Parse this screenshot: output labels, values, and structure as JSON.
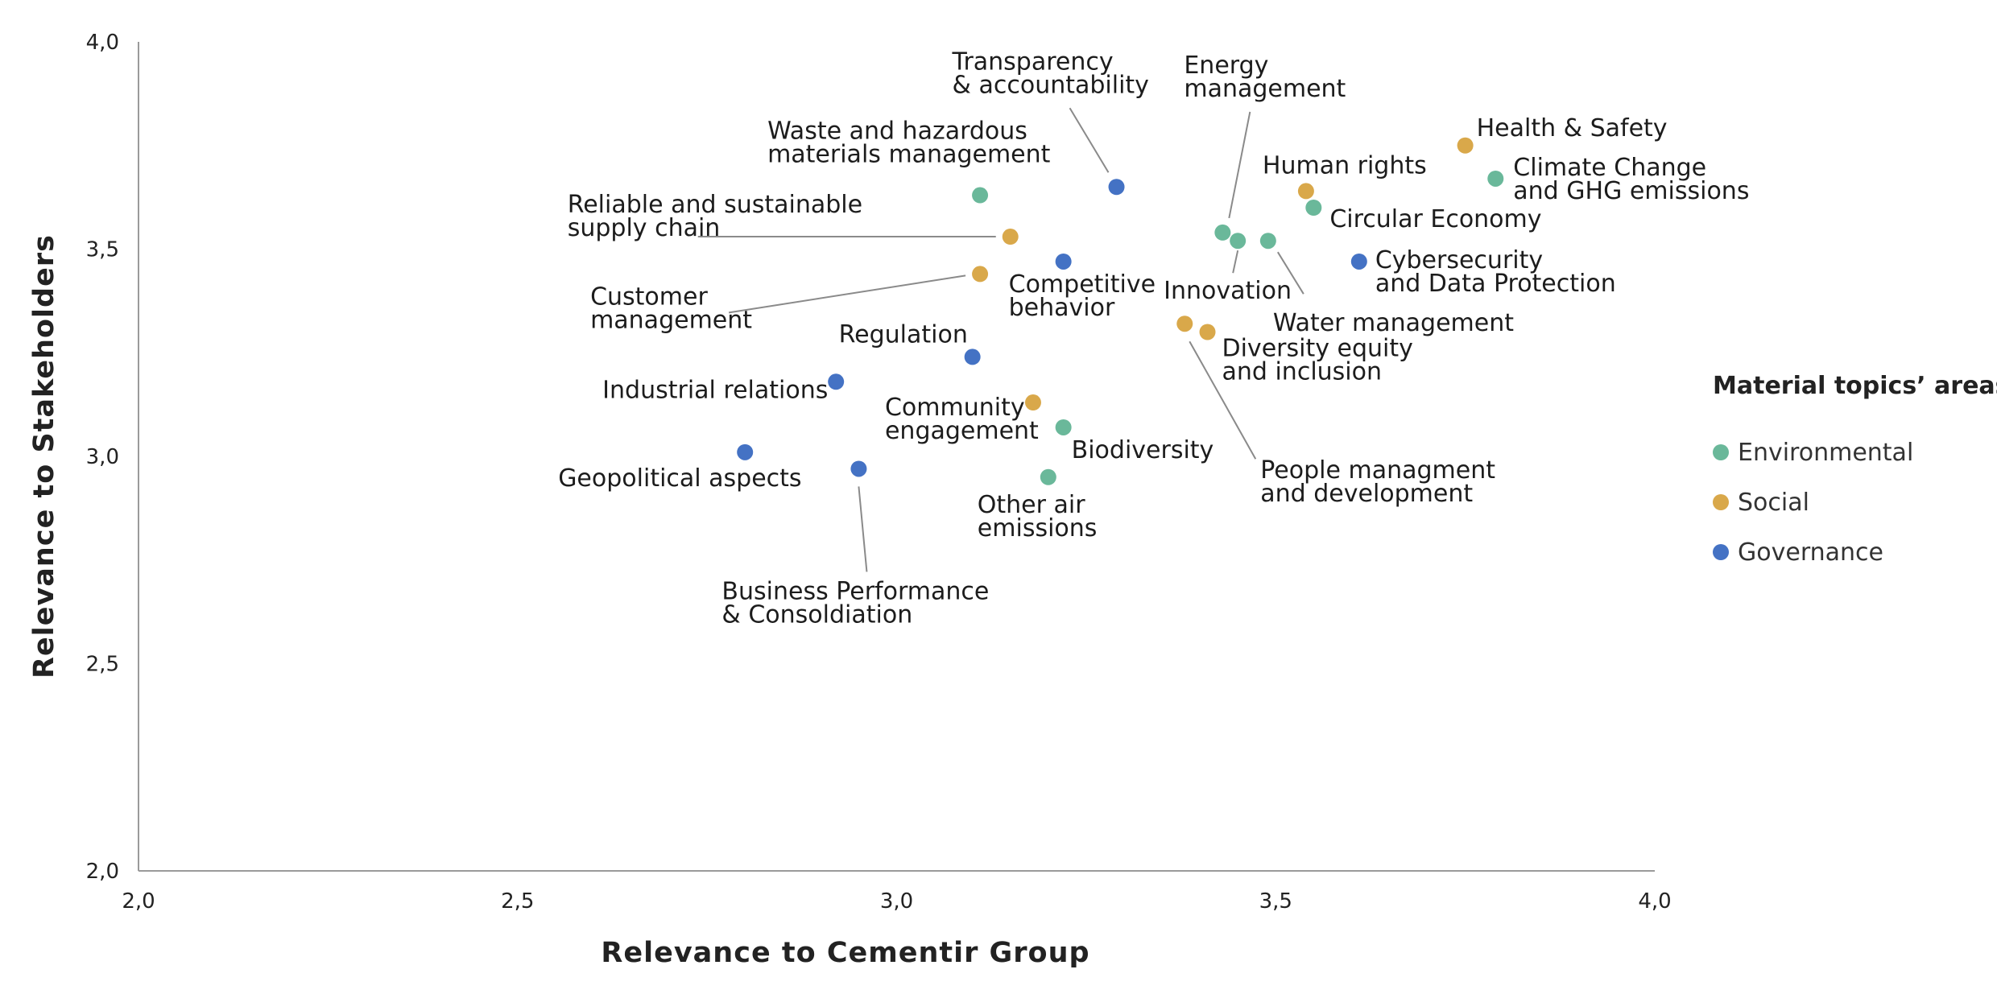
{
  "chart_data": {
    "type": "scatter",
    "xlabel": "Relevance to Cementir Group",
    "ylabel": "Relevance to Stakeholders",
    "xlim": [
      2.0,
      4.0
    ],
    "ylim": [
      2.0,
      4.0
    ],
    "x_ticks": [
      "2,0",
      "2,5",
      "3,0",
      "3,5",
      "4,0"
    ],
    "y_ticks": [
      "2,0",
      "2,5",
      "3,0",
      "3,5",
      "4,0"
    ],
    "grid": false,
    "legend": {
      "title": "Material topics’ areas",
      "position": "right",
      "entries": [
        {
          "area": "Environmental",
          "color": "#6ab89a"
        },
        {
          "area": "Social",
          "color": "#d9a84a"
        },
        {
          "area": "Governance",
          "color": "#4472c4"
        }
      ]
    },
    "points": [
      {
        "label": [
          "Health & Safety"
        ],
        "area": "Social",
        "x": 3.75,
        "y": 3.75
      },
      {
        "label": [
          "Climate Change",
          "and GHG emissions"
        ],
        "area": "Environmental",
        "x": 3.79,
        "y": 3.67
      },
      {
        "label": [
          "Human rights"
        ],
        "area": "Social",
        "x": 3.54,
        "y": 3.64
      },
      {
        "label": [
          "Circular Economy"
        ],
        "area": "Environmental",
        "x": 3.55,
        "y": 3.6
      },
      {
        "label": [
          "Cybersecurity",
          "and Data Protection"
        ],
        "area": "Governance",
        "x": 3.61,
        "y": 3.47
      },
      {
        "label": [
          "Energy",
          "management"
        ],
        "area": "Environmental",
        "x": 3.43,
        "y": 3.54
      },
      {
        "label": [
          "Innovation"
        ],
        "area": "Environmental",
        "x": 3.45,
        "y": 3.52
      },
      {
        "label": [
          "Water management"
        ],
        "area": "Environmental",
        "x": 3.49,
        "y": 3.52
      },
      {
        "label": [
          "Transparency",
          "& accountability"
        ],
        "area": "Governance",
        "x": 3.29,
        "y": 3.65
      },
      {
        "label": [
          "Waste and hazardous",
          "materials management"
        ],
        "area": "Environmental",
        "x": 3.11,
        "y": 3.63
      },
      {
        "label": [
          "Reliable and sustainable",
          "supply chain"
        ],
        "area": "Social",
        "x": 3.15,
        "y": 3.53
      },
      {
        "label": [
          "Competitive",
          "behavior"
        ],
        "area": "Governance",
        "x": 3.22,
        "y": 3.47
      },
      {
        "label": [
          "Customer",
          "management"
        ],
        "area": "Social",
        "x": 3.11,
        "y": 3.44
      },
      {
        "label": [
          "Regulation"
        ],
        "area": "Governance",
        "x": 3.1,
        "y": 3.24
      },
      {
        "label": [
          "Diversity equity",
          "and inclusion"
        ],
        "area": "Social",
        "x": 3.41,
        "y": 3.3
      },
      {
        "label": [
          "People managment",
          "and development"
        ],
        "area": "Social",
        "x": 3.38,
        "y": 3.32
      },
      {
        "label": [
          "Industrial relations"
        ],
        "area": "Governance",
        "x": 2.92,
        "y": 3.18
      },
      {
        "label": [
          "Community",
          "engagement"
        ],
        "area": "Social",
        "x": 3.18,
        "y": 3.13
      },
      {
        "label": [
          "Biodiversity"
        ],
        "area": "Environmental",
        "x": 3.22,
        "y": 3.07
      },
      {
        "label": [
          "Geopolitical aspects"
        ],
        "area": "Governance",
        "x": 2.8,
        "y": 3.01
      },
      {
        "label": [
          "Business Performance",
          "& Consoldiation"
        ],
        "area": "Governance",
        "x": 2.95,
        "y": 2.97
      },
      {
        "label": [
          "Other air",
          "emissions"
        ],
        "area": "Environmental",
        "x": 3.2,
        "y": 2.95
      }
    ]
  }
}
